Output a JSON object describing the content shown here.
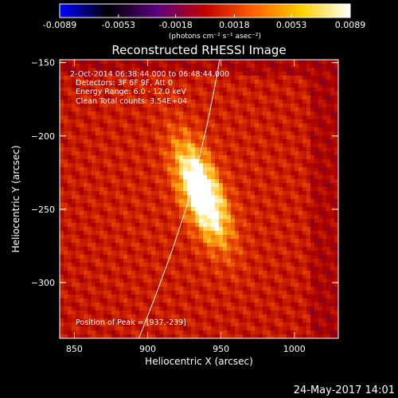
{
  "chart_data": {
    "type": "heatmap",
    "title": "Reconstructed RHESSI Image",
    "xlabel": "Heliocentric X (arcsec)",
    "ylabel": "Heliocentric Y (arcsec)",
    "xlim": [
      840,
      1030
    ],
    "ylim": [
      -338,
      -148
    ],
    "x_ticks": [
      850,
      900,
      950,
      1000
    ],
    "y_ticks": [
      -150,
      -200,
      -250,
      -300
    ],
    "colorbar": {
      "min": -0.0089,
      "max": 0.0089,
      "tick_values": [
        -0.0089,
        -0.0053,
        -0.0018,
        0.0018,
        0.0053,
        0.0089
      ],
      "tick_labels": [
        "-0.0089",
        "-0.0053",
        "-0.0018",
        "0.0018",
        "0.0053",
        "0.0089"
      ],
      "units_label": "(photons cm⁻² s⁻¹ asec⁻²)",
      "colormap": [
        "#0000ff",
        "#000000",
        "#5a0080",
        "#c00000",
        "#ff6000",
        "#ffd000",
        "#ffffff"
      ]
    },
    "annotations": [
      "2-Oct-2014 06:38:44.000 to 06:48:44.000",
      "Detectors: 3F 6F 9F, Att 0",
      "Energy Range: 6.0 - 12.0 keV",
      "Clean     Total counts: 3.54E+04"
    ],
    "peak_label": "Position of Peak = [937,-239]",
    "peak": {
      "x": 937,
      "y": -239
    },
    "limb_curve": [
      {
        "x": 894,
        "y": -338
      },
      {
        "x": 905,
        "y": -310
      },
      {
        "x": 916,
        "y": -280
      },
      {
        "x": 926,
        "y": -250
      },
      {
        "x": 934,
        "y": -220
      },
      {
        "x": 941,
        "y": -190
      },
      {
        "x": 947,
        "y": -160
      },
      {
        "x": 949,
        "y": -148
      }
    ]
  },
  "footer": {
    "timestamp": "24-May-2017 14:01"
  }
}
